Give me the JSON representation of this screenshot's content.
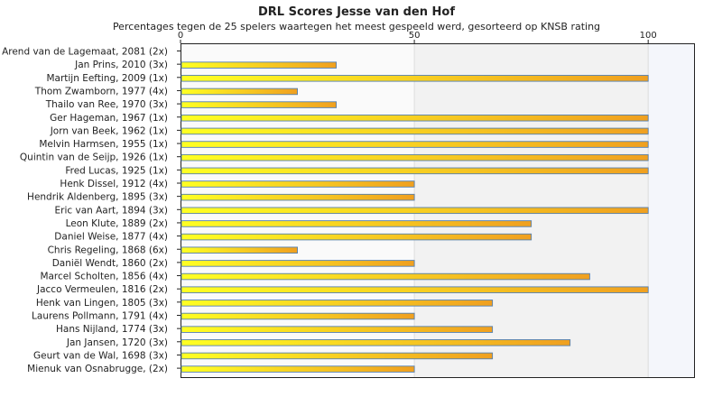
{
  "chart_data": {
    "type": "bar",
    "orientation": "horizontal",
    "title": "DRL Scores Jesse van den Hof",
    "subtitle": "Percentages tegen de 25 spelers waartegen het meest gespeeld werd, gesorteerd op KNSB rating",
    "categories": [
      "Arend van de Lagemaat, 2081 (2x)",
      "Jan Prins, 2010 (3x)",
      "Martijn Eefting, 2009 (1x)",
      "Thom Zwamborn, 1977 (4x)",
      "Thailo van Ree, 1970 (3x)",
      "Ger Hageman, 1967 (1x)",
      "Jorn van Beek, 1962 (1x)",
      "Melvin Harmsen, 1955 (1x)",
      "Quintin van de Seijp, 1926 (1x)",
      "Fred Lucas, 1925 (1x)",
      "Henk Dissel, 1912 (4x)",
      "Hendrik Aldenberg, 1895 (3x)",
      "Eric van Aart, 1894 (3x)",
      "Leon Klute, 1889 (2x)",
      "Daniel Weise, 1877 (4x)",
      "Chris Regeling, 1868 (6x)",
      "Daniël Wendt, 1860 (2x)",
      "Marcel Scholten, 1856 (4x)",
      "Jacco Vermeulen, 1816 (2x)",
      "Henk van Lingen, 1805 (3x)",
      "Laurens Pollmann, 1791 (4x)",
      "Hans Nijland, 1774 (3x)",
      "Jan Jansen, 1720 (3x)",
      "Geurt van de Wal, 1698 (3x)",
      "Mienuk van Osnabrugge,  (2x)"
    ],
    "values": [
      0,
      33.3,
      100,
      25,
      33.3,
      100,
      100,
      100,
      100,
      100,
      50,
      50,
      100,
      75,
      75,
      25,
      50,
      87.5,
      100,
      66.7,
      50,
      66.7,
      83.3,
      66.7,
      50
    ],
    "xlim": [
      0,
      110
    ],
    "xticks": [
      0,
      50,
      100
    ],
    "axis_position": "top",
    "grid": true,
    "colors": {
      "bar_start": "#ffff22",
      "bar_end": "#f0a020",
      "bar_border": "#5580b0",
      "band_light": "#fafafa",
      "band_mid": "#f2f2f2",
      "band_right": "#f4f6fb",
      "grid_line": "#dddddd",
      "frame": "#222222"
    }
  }
}
